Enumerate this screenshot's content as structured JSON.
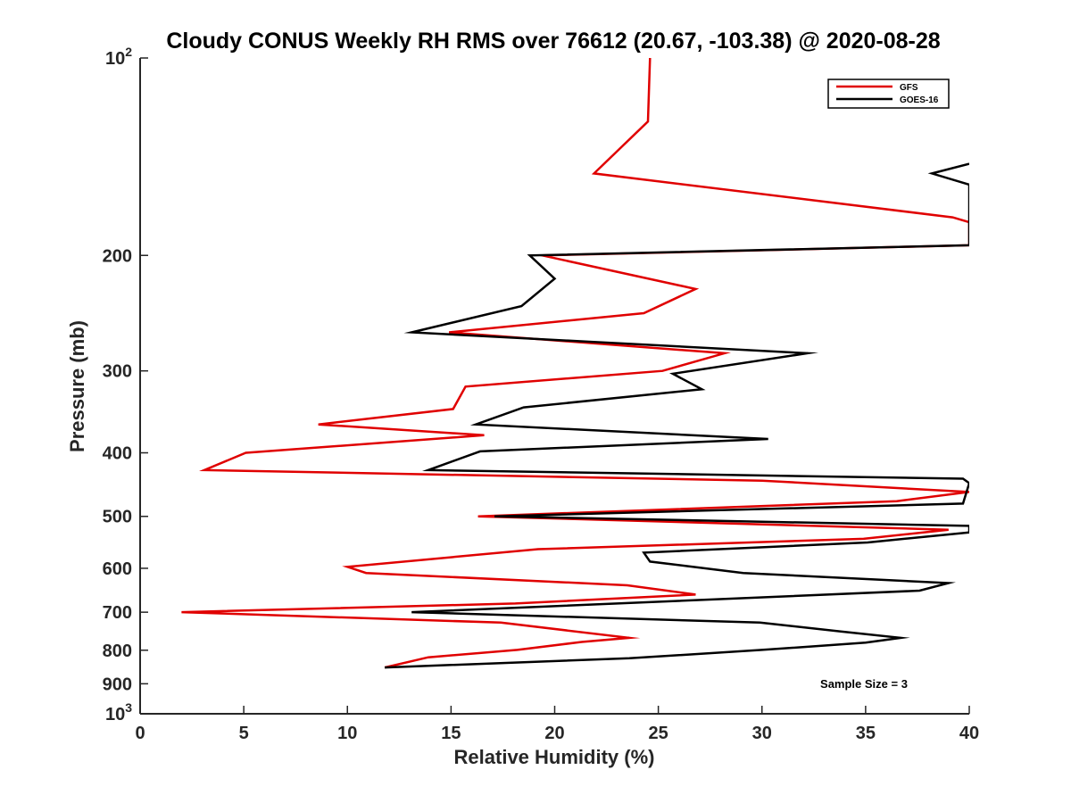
{
  "chart_data": {
    "type": "line",
    "title": "Cloudy CONUS Weekly RH RMS over 76612 (20.67, -103.38) @ 2020-08-28",
    "xlabel": "Relative Humidity (%)",
    "ylabel": "Pressure (mb)",
    "xlim": [
      0,
      40
    ],
    "ylim": [
      100,
      1000
    ],
    "yscale": "log",
    "y_reversed": true,
    "x_ticks": [
      0,
      5,
      10,
      15,
      20,
      25,
      30,
      35,
      40
    ],
    "x_tick_labels": [
      "0",
      "5",
      "10",
      "15",
      "20",
      "25",
      "30",
      "35",
      "40"
    ],
    "y_ticks": [
      100,
      200,
      300,
      400,
      500,
      600,
      700,
      800,
      900,
      1000
    ],
    "y_tick_labels": [
      {
        "base": "10",
        "exp": "2"
      },
      {
        "base": "200",
        "exp": ""
      },
      {
        "base": "300",
        "exp": ""
      },
      {
        "base": "400",
        "exp": ""
      },
      {
        "base": "500",
        "exp": ""
      },
      {
        "base": "600",
        "exp": ""
      },
      {
        "base": "700",
        "exp": ""
      },
      {
        "base": "800",
        "exp": ""
      },
      {
        "base": "900",
        "exp": ""
      },
      {
        "base": "10",
        "exp": "3"
      }
    ],
    "legend_position": "top-right",
    "annotation": "Sample Size = 3",
    "series": [
      {
        "name": "GFS",
        "color": "#e00000",
        "points": [
          [
            24.6,
            100
          ],
          [
            24.5,
            125
          ],
          [
            21.9,
            150
          ],
          [
            39.2,
            175
          ],
          [
            40.0,
            178
          ],
          [
            40.0,
            193
          ],
          [
            40.0,
            193
          ],
          [
            19.4,
            200
          ],
          [
            26.8,
            225
          ],
          [
            24.3,
            245
          ],
          [
            14.9,
            262
          ],
          [
            28.2,
            282
          ],
          [
            25.2,
            300
          ],
          [
            15.7,
            317
          ],
          [
            15.1,
            343
          ],
          [
            8.6,
            362
          ],
          [
            16.6,
            376
          ],
          [
            5.1,
            400
          ],
          [
            3.1,
            425
          ],
          [
            30.0,
            441
          ],
          [
            40.0,
            459
          ],
          [
            36.5,
            474
          ],
          [
            16.3,
            500
          ],
          [
            39.0,
            524
          ],
          [
            34.9,
            541
          ],
          [
            19.2,
            561
          ],
          [
            10.0,
            597
          ],
          [
            10.9,
            610
          ],
          [
            23.5,
            637
          ],
          [
            26.8,
            658
          ],
          [
            18.1,
            679
          ],
          [
            2.0,
            700
          ],
          [
            17.4,
            726
          ],
          [
            23.6,
            766
          ],
          [
            21.3,
            777
          ],
          [
            18.2,
            799
          ],
          [
            13.9,
            820
          ],
          [
            11.8,
            850
          ]
        ]
      },
      {
        "name": "GOES-16",
        "color": "#000000",
        "points": [
          [
            40.0,
            145
          ],
          [
            38.2,
            150
          ],
          [
            40.0,
            156
          ],
          [
            40.0,
            193
          ],
          [
            18.8,
            200
          ],
          [
            20.0,
            217
          ],
          [
            18.4,
            239
          ],
          [
            13.1,
            262
          ],
          [
            32.2,
            282
          ],
          [
            25.7,
            303
          ],
          [
            27.1,
            320
          ],
          [
            18.5,
            341
          ],
          [
            16.2,
            362
          ],
          [
            30.3,
            381
          ],
          [
            16.4,
            398
          ],
          [
            13.9,
            425
          ],
          [
            39.7,
            438
          ],
          [
            40.0,
            445
          ],
          [
            39.7,
            478
          ],
          [
            17.1,
            500
          ],
          [
            40.0,
            517
          ],
          [
            40.0,
            529
          ],
          [
            35.1,
            548
          ],
          [
            24.3,
            568
          ],
          [
            24.6,
            586
          ],
          [
            29.1,
            610
          ],
          [
            39.0,
            632
          ],
          [
            37.6,
            649
          ],
          [
            13.1,
            700
          ],
          [
            29.9,
            726
          ],
          [
            33.8,
            749
          ],
          [
            36.7,
            766
          ],
          [
            35.0,
            779
          ],
          [
            30.0,
            799
          ],
          [
            23.6,
            823
          ],
          [
            11.8,
            850
          ]
        ]
      }
    ]
  }
}
